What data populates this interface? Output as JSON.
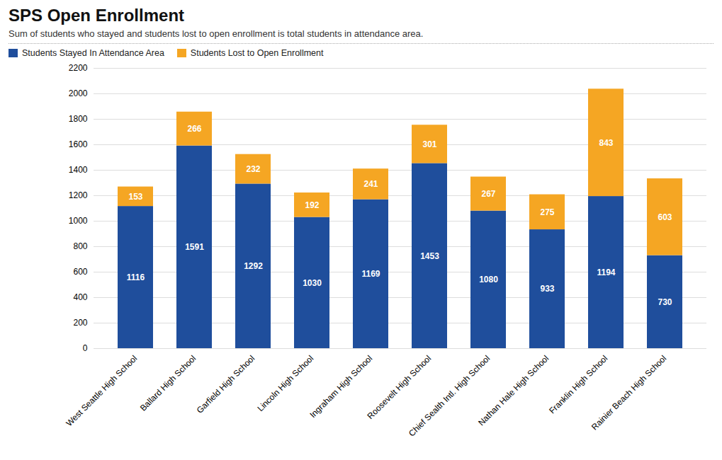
{
  "chart_data": {
    "type": "bar",
    "stacked": true,
    "title": "SPS Open Enrollment",
    "subtitle": "Sum of students who stayed and students lost to open enrollment is total students in attendance area.",
    "categories": [
      "West Seattle High School",
      "Ballard High School",
      "Garfield High School",
      "Lincoln High School",
      "Ingraham High School",
      "Roosevelt High School",
      "Chief Sealth Intl. High School",
      "Nathan Hale High School",
      "Franklin High School",
      "Rainier Beach High School"
    ],
    "series": [
      {
        "name": "Students Stayed In Attendance Area",
        "color": "#1F4E9C",
        "values": [
          1116,
          1591,
          1292,
          1030,
          1169,
          1453,
          1080,
          933,
          1194,
          730
        ]
      },
      {
        "name": "Students Lost to Open Enrollment",
        "color": "#F5A623",
        "values": [
          153,
          266,
          232,
          192,
          241,
          301,
          267,
          275,
          843,
          603
        ]
      }
    ],
    "ylim": [
      0,
      2200
    ],
    "yticks": [
      0,
      200,
      400,
      600,
      800,
      1000,
      1200,
      1400,
      1600,
      1800,
      2000,
      2200
    ],
    "grid": true,
    "legend": "top",
    "data_labels": true
  }
}
